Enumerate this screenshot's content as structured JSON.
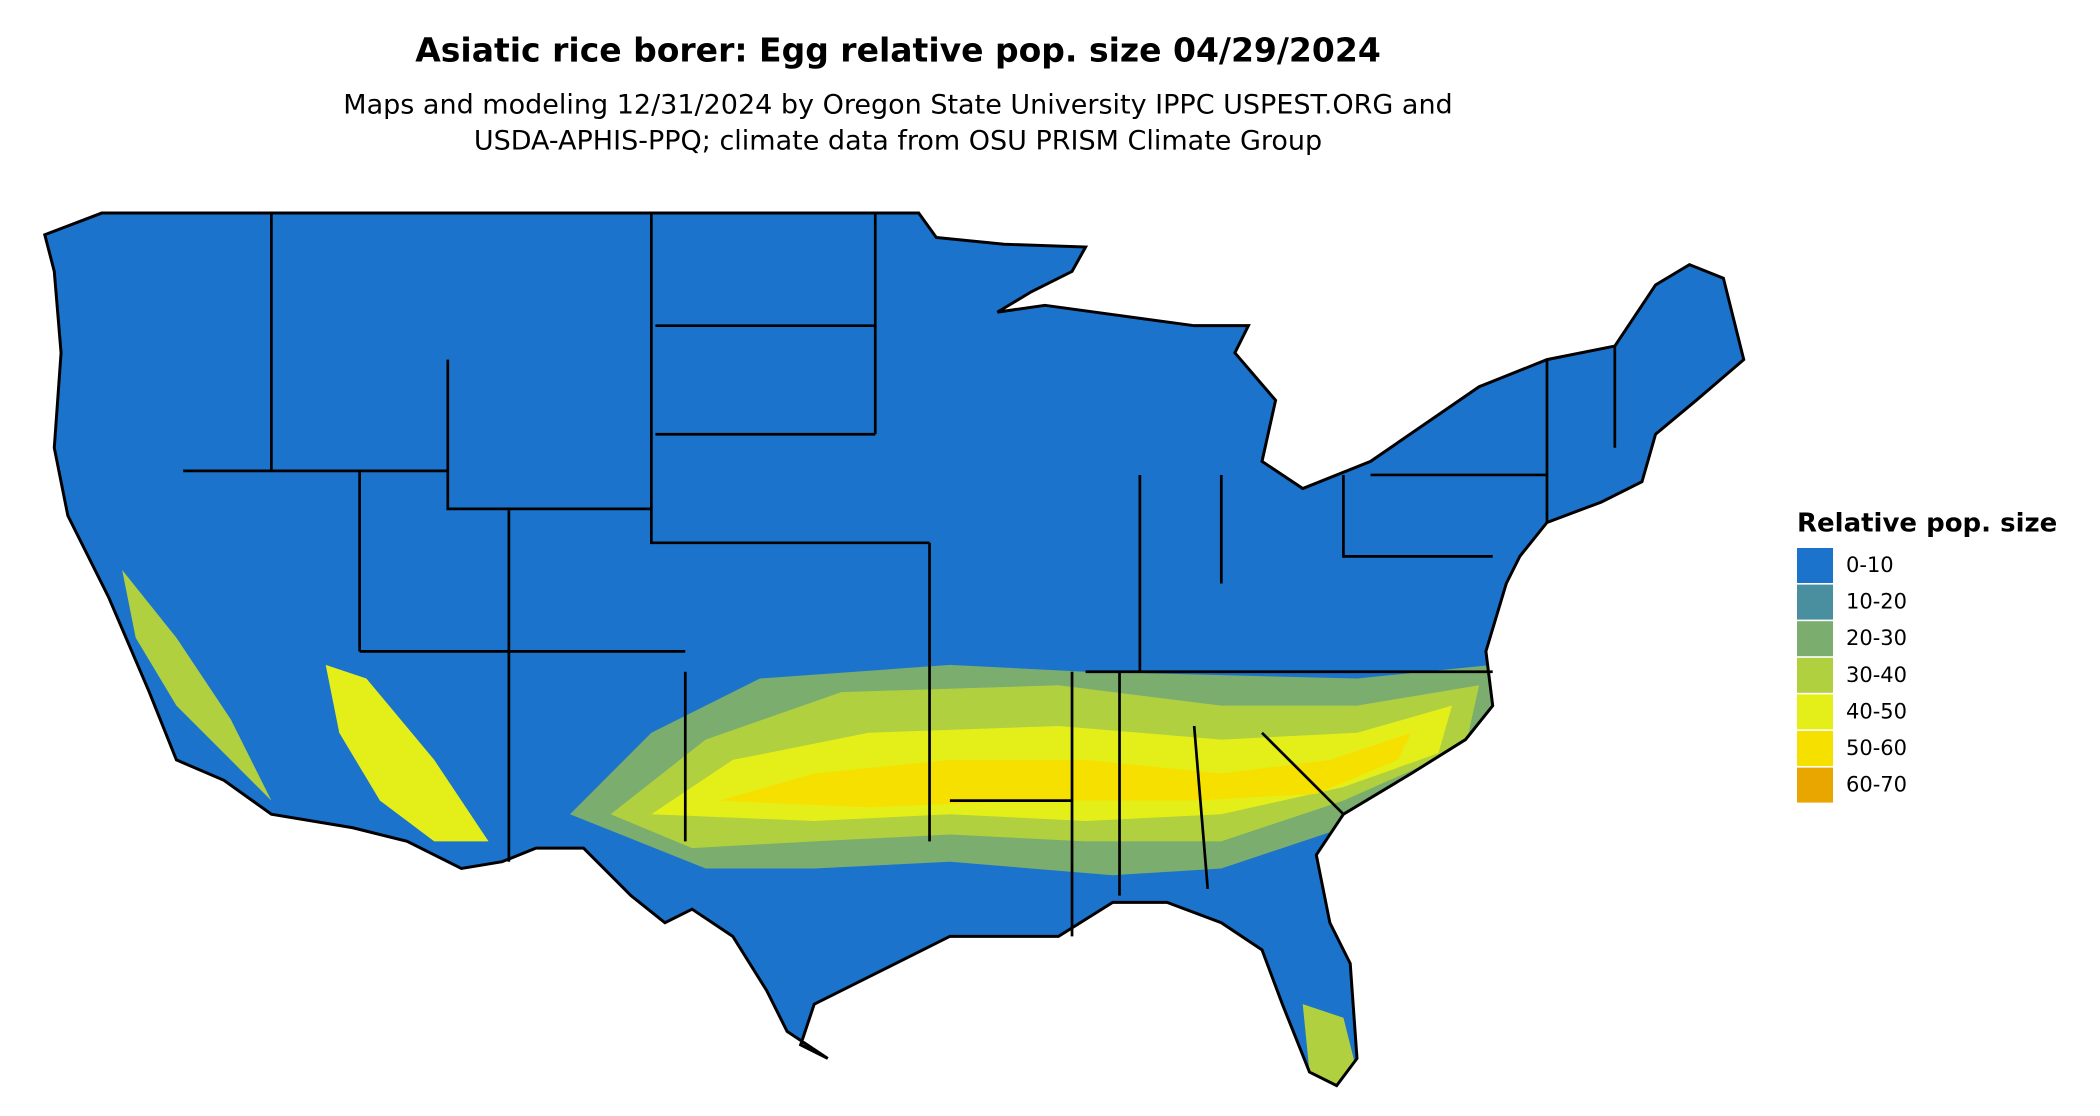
{
  "title": "Asiatic rice borer: Egg relative pop. size 04/29/2024",
  "subtitle": [
    "Maps and modeling 12/31/2024 by Oregon State University IPPC USPEST.ORG and",
    "USDA-APHIS-PPQ; climate data from OSU PRISM Climate Group"
  ],
  "legend": {
    "title": "Relative pop. size",
    "items": [
      {
        "label": "0-10",
        "color": "#1c73cb"
      },
      {
        "label": "10-20",
        "color": "#4a8fa0"
      },
      {
        "label": "20-30",
        "color": "#7aad6e"
      },
      {
        "label": "30-40",
        "color": "#b0d040"
      },
      {
        "label": "40-50",
        "color": "#e4ef1a"
      },
      {
        "label": "50-60",
        "color": "#f5e000"
      },
      {
        "label": "60-70",
        "color": "#eaa600"
      }
    ]
  }
}
